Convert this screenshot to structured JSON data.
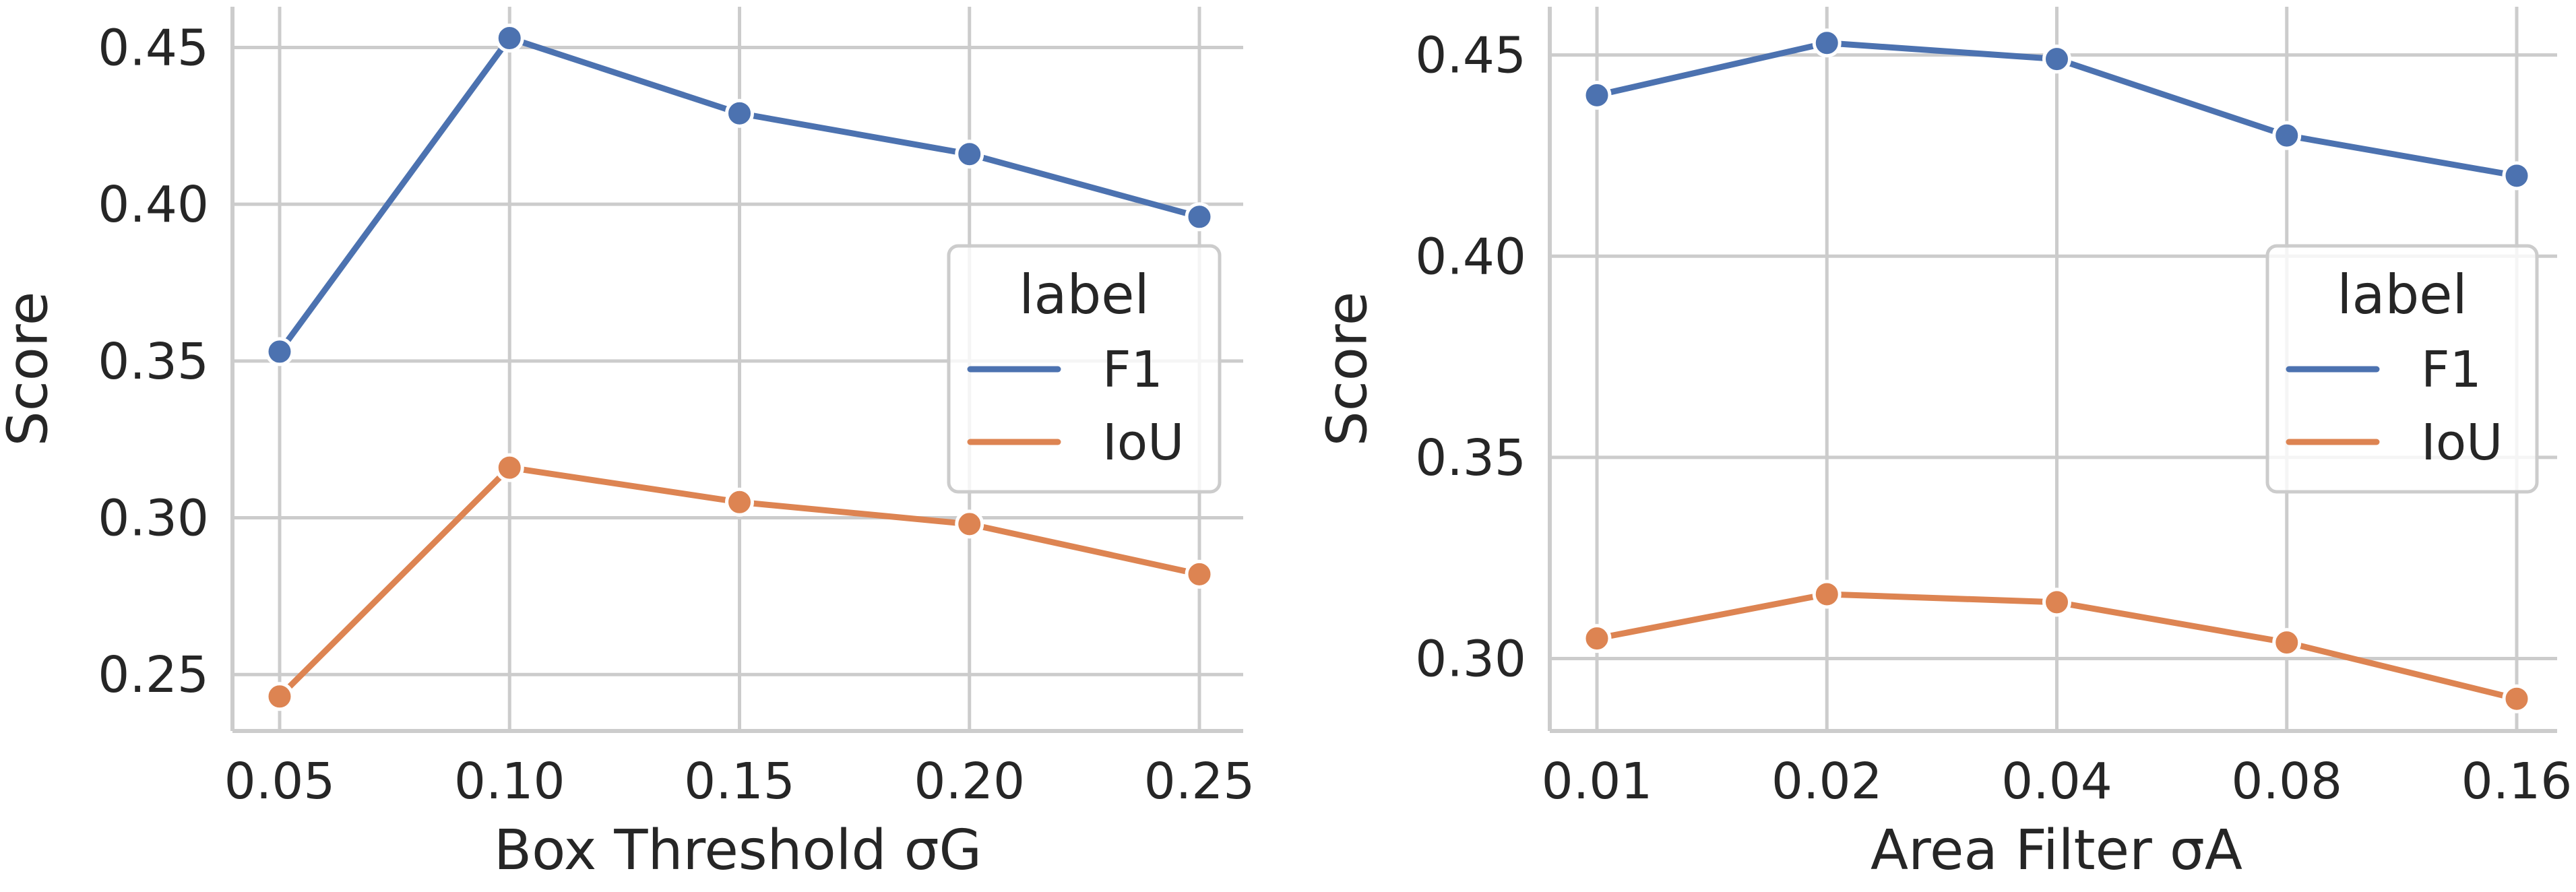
{
  "chart_data": [
    {
      "type": "line",
      "title": "",
      "xlabel": "Box Threshold σG",
      "ylabel": "Score",
      "categories": [
        "0.05",
        "0.10",
        "0.15",
        "0.20",
        "0.25"
      ],
      "yticks": [
        "0.25",
        "0.30",
        "0.35",
        "0.40",
        "0.45"
      ],
      "ylim": [
        0.232,
        0.463
      ],
      "grid": true,
      "legend": {
        "title": "label",
        "placement": "center-right"
      },
      "series": [
        {
          "name": "F1",
          "color": "#4c72b0",
          "values": [
            0.353,
            0.453,
            0.429,
            0.416,
            0.396
          ]
        },
        {
          "name": "IoU",
          "color": "#dd8452",
          "values": [
            0.243,
            0.316,
            0.305,
            0.298,
            0.282
          ]
        }
      ]
    },
    {
      "type": "line",
      "title": "",
      "xlabel": "Area Filter σA",
      "ylabel": "Score",
      "categories": [
        "0.01",
        "0.02",
        "0.04",
        "0.08",
        "0.16"
      ],
      "yticks": [
        "0.30",
        "0.35",
        "0.40",
        "0.45"
      ],
      "ylim": [
        0.282,
        0.462
      ],
      "grid": true,
      "legend": {
        "title": "label",
        "placement": "center-right"
      },
      "series": [
        {
          "name": "F1",
          "color": "#4c72b0",
          "values": [
            0.44,
            0.453,
            0.449,
            0.43,
            0.42
          ]
        },
        {
          "name": "IoU",
          "color": "#dd8452",
          "values": [
            0.305,
            0.316,
            0.314,
            0.304,
            0.29
          ]
        }
      ]
    }
  ]
}
